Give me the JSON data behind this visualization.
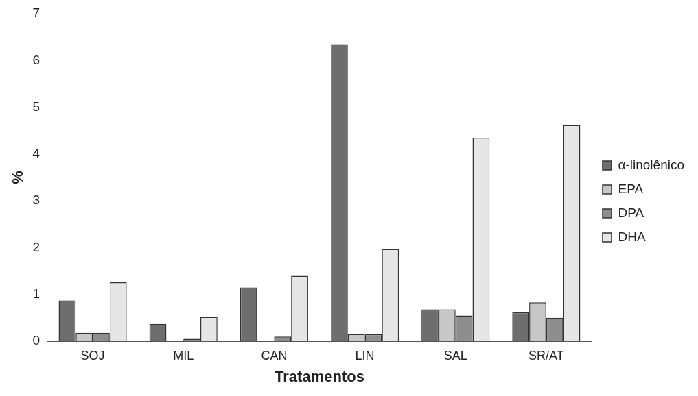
{
  "chart_data": {
    "type": "bar",
    "xlabel": "Tratamentos",
    "ylabel": "%",
    "categories": [
      "SOJ",
      "MIL",
      "CAN",
      "LIN",
      "SAL",
      "SR/AT"
    ],
    "series": [
      {
        "name": "α-linolênico",
        "color": "#6e6e6e",
        "values": [
          0.87,
          0.37,
          1.15,
          6.35,
          0.68,
          0.62
        ]
      },
      {
        "name": "EPA",
        "color": "#c8c8c8",
        "values": [
          0.18,
          0,
          0,
          0.15,
          0.68,
          0.83
        ]
      },
      {
        "name": "DPA",
        "color": "#8e8e8e",
        "values": [
          0.18,
          0.05,
          0.1,
          0.15,
          0.55,
          0.5
        ]
      },
      {
        "name": "DHA",
        "color": "#e6e6e6",
        "values": [
          1.26,
          0.52,
          1.4,
          1.97,
          4.35,
          4.62
        ]
      }
    ],
    "ylim": [
      0,
      7
    ],
    "yticks": [
      0,
      1,
      2,
      3,
      4,
      5,
      6,
      7
    ],
    "grid": false,
    "legend": "right"
  }
}
